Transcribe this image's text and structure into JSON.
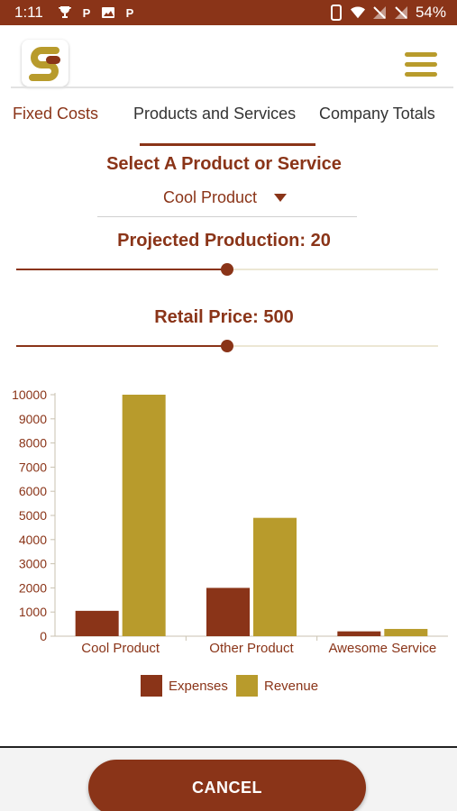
{
  "status_bar": {
    "time": "1:11",
    "battery": "54%",
    "background": "#8a3418"
  },
  "header": {
    "logo_icon": "spreadsheet-s-logo",
    "menu_icon": "hamburger-menu-icon"
  },
  "tabs": [
    {
      "label": "Fixed Costs"
    },
    {
      "label": "Products and Services"
    },
    {
      "label": "Company Totals"
    }
  ],
  "product_section": {
    "title": "Select A Product or Service",
    "selected": "Cool Product"
  },
  "production": {
    "label": "Projected Production: 20",
    "level": 0.5
  },
  "price": {
    "label": "Retail Price: 500",
    "level": 0.5
  },
  "colors": {
    "accent": "#8a3418",
    "gold": "#b89b2c"
  },
  "chart_data": {
    "type": "bar",
    "categories": [
      "Cool Product",
      "Other Product",
      "Awesome Service"
    ],
    "series": [
      {
        "name": "Expenses",
        "values": [
          1050,
          2000,
          200
        ],
        "color": "#8a3418"
      },
      {
        "name": "Revenue",
        "values": [
          10000,
          4900,
          300
        ],
        "color": "#b89b2c"
      }
    ],
    "yticks": [
      "0",
      "1000",
      "2000",
      "3000",
      "4000",
      "5000",
      "6000",
      "7000",
      "8000",
      "9000",
      "10000"
    ],
    "ylim": [
      0,
      10000
    ],
    "legend": "bottom-center",
    "grid": false
  },
  "footer": {
    "cancel_label": "CANCEL"
  }
}
